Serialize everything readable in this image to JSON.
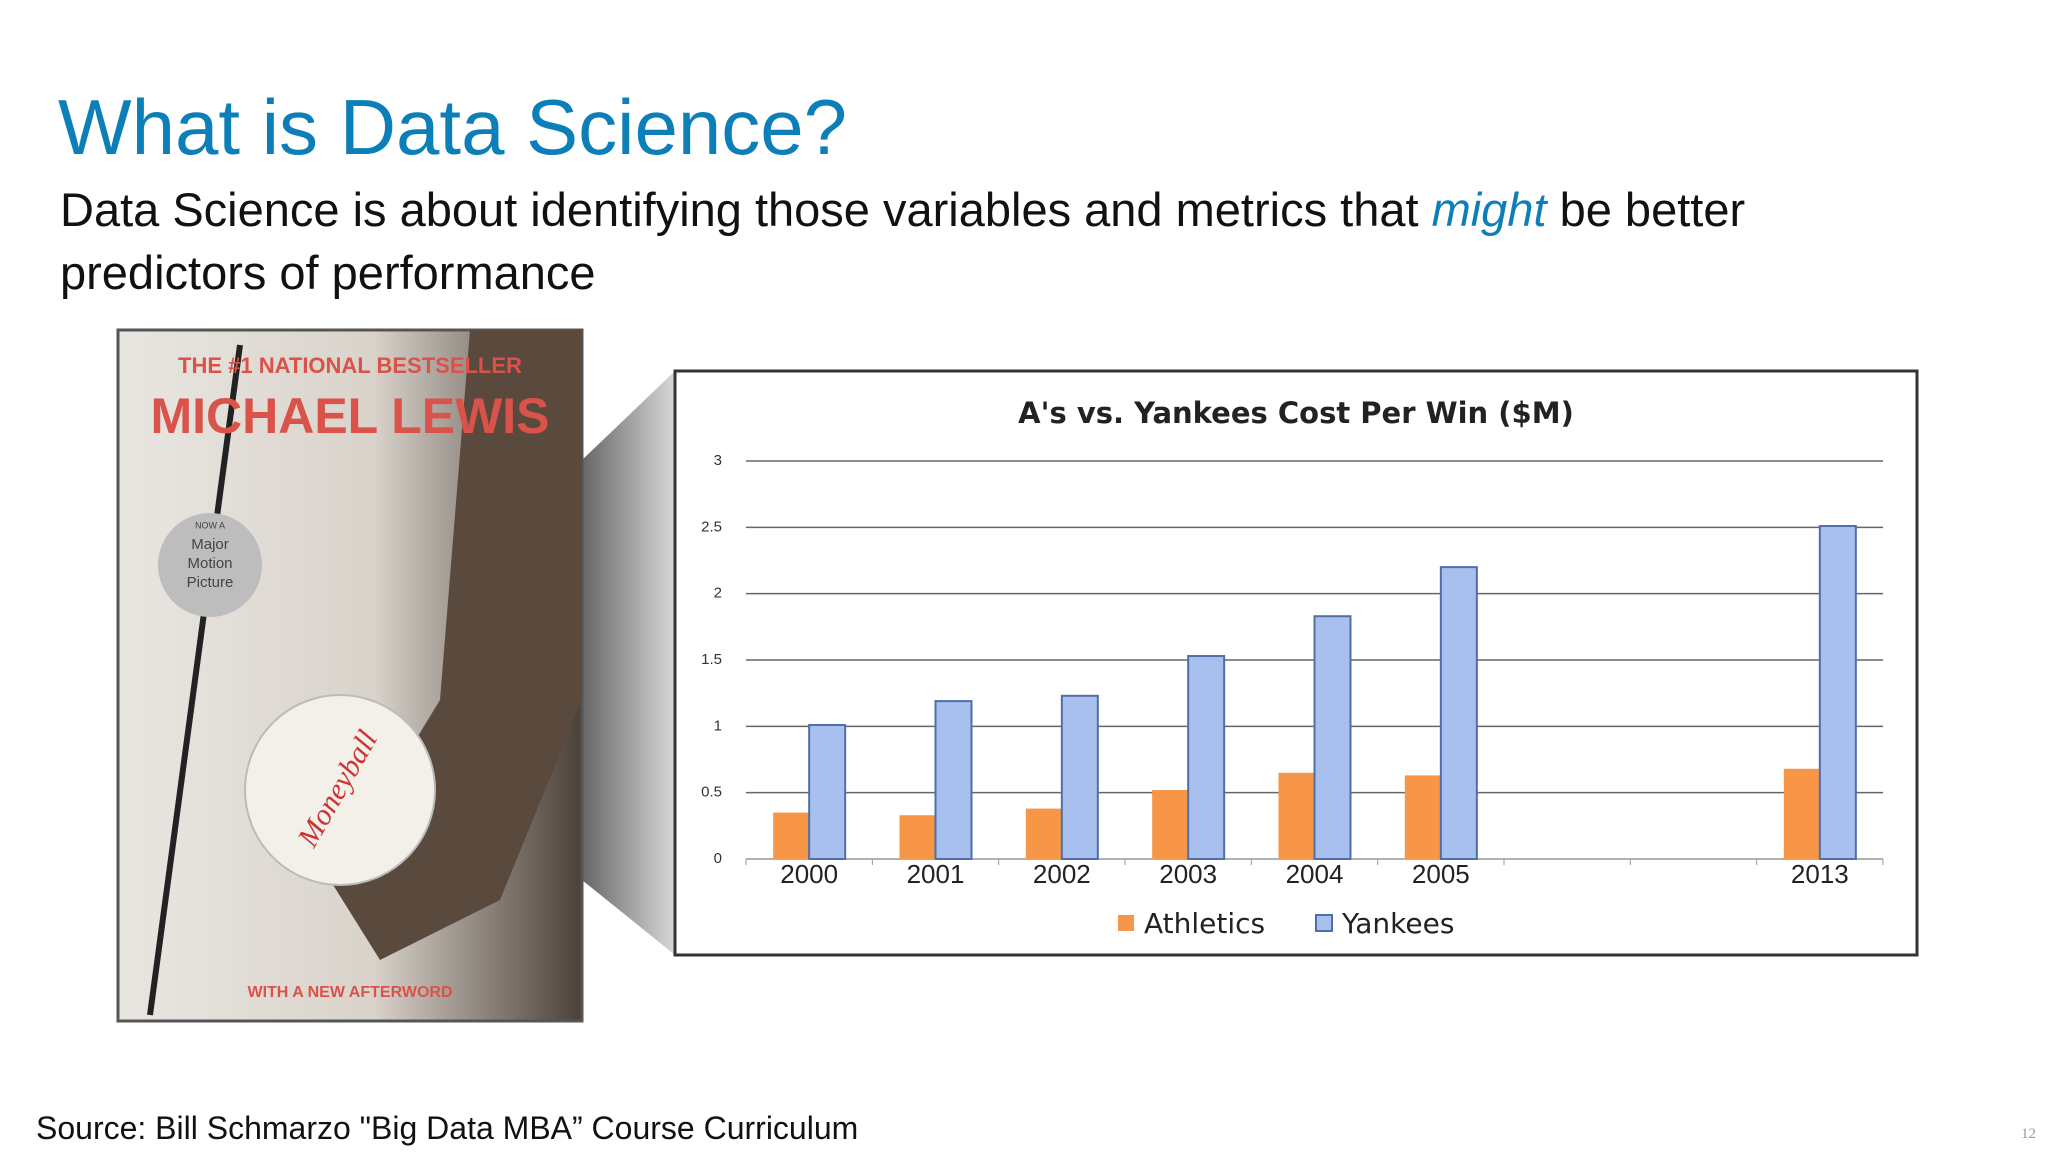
{
  "title": "What is Data Science?",
  "body": [
    "Data Science is about identifying those variables and metrics that ",
    "might",
    " be better predictors of performance"
  ],
  "book": {
    "tagline": "THE #1 NATIONAL BESTSELLER",
    "author": "MICHAEL LEWIS",
    "badge": [
      "NOW A",
      "Major",
      "Motion",
      "Picture"
    ],
    "ball": "Moneyball",
    "footer": "WITH A NEW AFTERWORD"
  },
  "chart_data": {
    "type": "bar",
    "title": "A's vs. Yankees Cost Per Win ($M)",
    "categories": [
      "2000",
      "2001",
      "2002",
      "2003",
      "2004",
      "2005",
      null,
      null,
      "2013"
    ],
    "series": [
      {
        "name": "Athletics",
        "color": "#f79646",
        "values": [
          0.35,
          0.33,
          0.38,
          0.52,
          0.65,
          0.63,
          null,
          null,
          0.68
        ]
      },
      {
        "name": "Yankees",
        "color": "#a7c0ee",
        "values": [
          1.01,
          1.19,
          1.23,
          1.53,
          1.83,
          2.2,
          null,
          null,
          2.51
        ]
      }
    ],
    "ylim": [
      0,
      3
    ],
    "yticks": [
      0,
      0.5,
      1,
      1.5,
      2,
      2.5,
      3
    ],
    "grid": true,
    "legend": "bottom"
  },
  "source": "Source: Bill Schmarzo \"Big Data MBA” Course Curriculum",
  "page_number": "12"
}
